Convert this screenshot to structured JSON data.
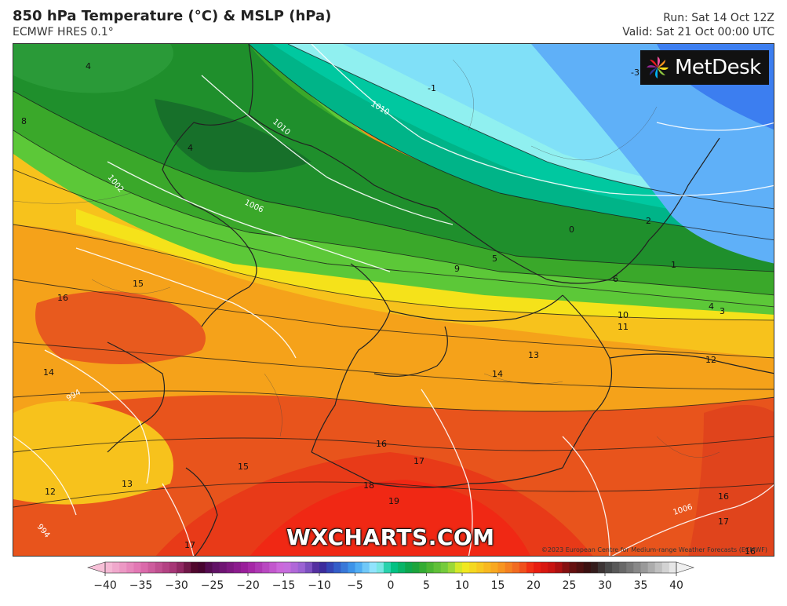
{
  "header": {
    "title": "850 hPa Temperature (°C) & MSLP (hPa)",
    "subtitle": "ECMWF HRES 0.1°",
    "run": "Run: Sat 14 Oct 12Z",
    "valid": "Valid: Sat 21 Oct 00:00 UTC"
  },
  "logo": {
    "text": "MetDesk"
  },
  "watermark": "WXCHARTS.COM",
  "credit": "©2023 European Centre for Medium-range Weather Forecasts (ECMWF)",
  "colorbar": {
    "ticks": [
      "−40",
      "−35",
      "−30",
      "−25",
      "−20",
      "−15",
      "−10",
      "−5",
      "0",
      "5",
      "10",
      "15",
      "20",
      "25",
      "30",
      "35",
      "40"
    ],
    "min": -40,
    "max": 40
  },
  "map": {
    "temperature_labels": [
      "4",
      "4",
      "8",
      "-1",
      "-3",
      "0",
      "2",
      "1",
      "5",
      "9",
      "6",
      "4",
      "3",
      "10",
      "11",
      "13",
      "12",
      "14",
      "15",
      "16",
      "14",
      "16",
      "17",
      "18",
      "19",
      "15",
      "13",
      "12",
      "17",
      "16",
      "17",
      "16"
    ],
    "pressure_labels": [
      "1010",
      "1010",
      "1006",
      "1002",
      "994",
      "994",
      "1006"
    ]
  }
}
